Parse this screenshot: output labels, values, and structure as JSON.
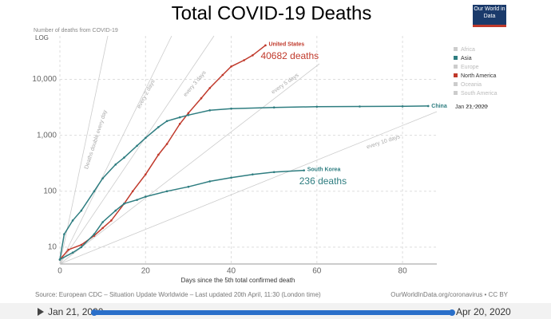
{
  "chart_data": {
    "type": "line",
    "title": "Total COVID-19 Deaths",
    "logo": "Our World in Data",
    "y_label": "Number of deaths from COVID-19",
    "scale_label": "LOG",
    "x_label": "Days since the 5th total confirmed death",
    "ylog": true,
    "xlim": [
      0,
      88
    ],
    "ylim": [
      5,
      60000
    ],
    "xticks": [
      0,
      20,
      40,
      60,
      80
    ],
    "yticks": [
      10,
      100,
      {
        "value": 1000,
        "label": "1,000"
      },
      {
        "value": 10000,
        "label": "10,000"
      }
    ],
    "grid": true,
    "series": [
      {
        "name": "United States",
        "color": "#c0392b",
        "annotation": "40682 deaths",
        "x": [
          0,
          2,
          5,
          8,
          10,
          12,
          15,
          17,
          20,
          23,
          25,
          28,
          30,
          33,
          35,
          38,
          40,
          43,
          45,
          48
        ],
        "values": [
          6,
          9,
          11,
          16,
          22,
          30,
          60,
          100,
          200,
          450,
          700,
          1600,
          2500,
          4600,
          7000,
          12000,
          17000,
          22000,
          27000,
          40682
        ]
      },
      {
        "name": "China",
        "color": "#2e7d80",
        "x": [
          0,
          1,
          3,
          5,
          8,
          10,
          13,
          15,
          18,
          20,
          23,
          25,
          28,
          30,
          35,
          40,
          50,
          60,
          70,
          80,
          86
        ],
        "values": [
          6,
          17,
          30,
          45,
          100,
          170,
          300,
          400,
          650,
          900,
          1400,
          1800,
          2100,
          2300,
          2800,
          3000,
          3150,
          3250,
          3280,
          3300,
          3340
        ]
      },
      {
        "name": "South Korea",
        "color": "#2e7d80",
        "annotation": "236 deaths",
        "x": [
          0,
          3,
          5,
          8,
          10,
          13,
          15,
          18,
          20,
          25,
          30,
          35,
          40,
          45,
          50,
          57
        ],
        "values": [
          6,
          8,
          10,
          17,
          28,
          45,
          60,
          70,
          80,
          100,
          120,
          150,
          175,
          200,
          220,
          236
        ]
      }
    ],
    "doubling": [
      "Deaths double every day",
      "every 2 days",
      "every 3 days",
      "every 5 days",
      "every 10 days"
    ],
    "legend": [
      {
        "name": "Africa",
        "color": "#cccccc"
      },
      {
        "name": "Asia",
        "color": "#2e7d80"
      },
      {
        "name": "Europe",
        "color": "#cccccc"
      },
      {
        "name": "North America",
        "color": "#c0392b"
      },
      {
        "name": "Oceania",
        "color": "#cccccc"
      },
      {
        "name": "South America",
        "color": "#cccccc"
      }
    ],
    "timeline": [
      "Jan 21, 2020",
      "Apr 20, 2020"
    ],
    "source": "Source: European CDC – Situation Update Worldwide – Last updated 20th April, 11:30 (London time)",
    "license": "OurWorldInData.org/coronavirus • CC BY",
    "player": {
      "start": "Jan 21, 2020",
      "end": "Apr 20, 2020"
    }
  }
}
